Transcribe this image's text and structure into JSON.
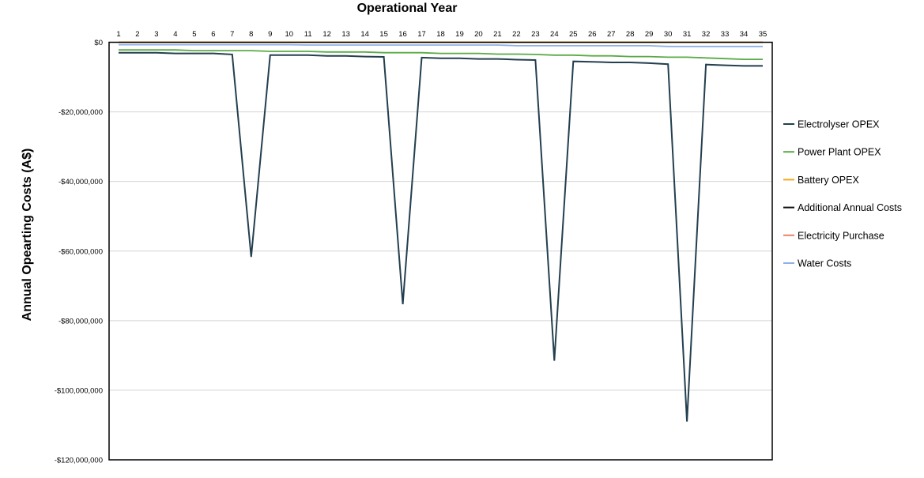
{
  "chart_data": {
    "type": "line",
    "title": "Operational Year",
    "xlabel": "",
    "ylabel": "Annual Opearting Costs (A$)",
    "x": [
      1,
      2,
      3,
      4,
      5,
      6,
      7,
      8,
      9,
      10,
      11,
      12,
      13,
      14,
      15,
      16,
      17,
      18,
      19,
      20,
      21,
      22,
      23,
      24,
      25,
      26,
      27,
      28,
      29,
      30,
      31,
      32,
      33,
      34,
      35
    ],
    "x_tick_labels": [
      "1",
      "2",
      "3",
      "4",
      "5",
      "6",
      "7",
      "8",
      "9",
      "10",
      "11",
      "12",
      "13",
      "14",
      "15",
      "16",
      "17",
      "18",
      "19",
      "20",
      "21",
      "22",
      "23",
      "24",
      "25",
      "26",
      "27",
      "28",
      "29",
      "30",
      "31",
      "32",
      "33",
      "34",
      "35"
    ],
    "ylim": [
      -120000000,
      0
    ],
    "y_ticks": [
      0,
      -20000000,
      -40000000,
      -60000000,
      -80000000,
      -100000000,
      -120000000
    ],
    "y_tick_labels": [
      "$0",
      "-$20,000,000",
      "-$40,000,000",
      "-$60,000,000",
      "-$80,000,000",
      "-$100,000,000",
      "-$120,000,000"
    ],
    "grid": "horizontal",
    "x_axis_position": "top",
    "legend_position": "right",
    "series": [
      {
        "name": "Electrolyser OPEX",
        "color": "#243f4f",
        "values": [
          -3000000,
          -3000000,
          -3000000,
          -3200000,
          -3200000,
          -3200000,
          -3500000,
          -61700000,
          -3700000,
          -3700000,
          -3700000,
          -3900000,
          -3900000,
          -4100000,
          -4200000,
          -75300000,
          -4400000,
          -4600000,
          -4600000,
          -4800000,
          -4800000,
          -5000000,
          -5100000,
          -91500000,
          -5500000,
          -5600000,
          -5800000,
          -5800000,
          -6000000,
          -6300000,
          -109000000,
          -6400000,
          -6600000,
          -6800000,
          -6800000
        ]
      },
      {
        "name": "Power Plant OPEX",
        "color": "#5aaa46",
        "values": [
          -2200000,
          -2200000,
          -2200000,
          -2200000,
          -2400000,
          -2400000,
          -2400000,
          -2400000,
          -2600000,
          -2600000,
          -2600000,
          -2800000,
          -2800000,
          -2800000,
          -3000000,
          -3000000,
          -3000000,
          -3200000,
          -3200000,
          -3200000,
          -3400000,
          -3400000,
          -3500000,
          -3700000,
          -3700000,
          -3900000,
          -3900000,
          -4100000,
          -4100000,
          -4300000,
          -4300000,
          -4500000,
          -4700000,
          -4900000,
          -4900000
        ]
      },
      {
        "name": "Battery OPEX",
        "color": "#f4a81d",
        "values": [
          0,
          0,
          0,
          0,
          0,
          0,
          0,
          0,
          0,
          0,
          0,
          0,
          0,
          0,
          0,
          0,
          0,
          0,
          0,
          0,
          0,
          0,
          0,
          0,
          0,
          0,
          0,
          0,
          0,
          0,
          0,
          0,
          0,
          0,
          0
        ]
      },
      {
        "name": "Additional Annual Costs",
        "color": "#111111",
        "values": [
          0,
          0,
          0,
          0,
          0,
          0,
          0,
          0,
          0,
          0,
          0,
          0,
          0,
          0,
          0,
          0,
          0,
          0,
          0,
          0,
          0,
          0,
          0,
          0,
          0,
          0,
          0,
          0,
          0,
          0,
          0,
          0,
          0,
          0,
          0
        ]
      },
      {
        "name": "Electricity Purchase",
        "color": "#e8826a",
        "values": [
          0,
          0,
          0,
          0,
          0,
          0,
          0,
          0,
          0,
          0,
          0,
          0,
          0,
          0,
          0,
          0,
          0,
          0,
          0,
          0,
          0,
          0,
          0,
          0,
          0,
          0,
          0,
          0,
          0,
          0,
          0,
          0,
          0,
          0,
          0
        ]
      },
      {
        "name": "Water Costs",
        "color": "#8fb0e8",
        "values": [
          -700000,
          -700000,
          -700000,
          -700000,
          -700000,
          -700000,
          -700000,
          -700000,
          -700000,
          -700000,
          -800000,
          -800000,
          -800000,
          -800000,
          -800000,
          -800000,
          -800000,
          -800000,
          -800000,
          -800000,
          -800000,
          -1000000,
          -1000000,
          -1000000,
          -1000000,
          -1000000,
          -1000000,
          -1000000,
          -1000000,
          -1200000,
          -1200000,
          -1200000,
          -1200000,
          -1200000,
          -1200000
        ]
      }
    ]
  }
}
